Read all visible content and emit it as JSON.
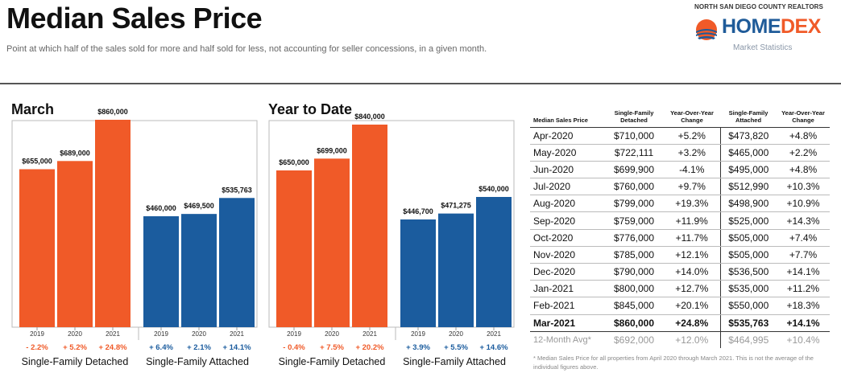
{
  "header": {
    "title": "Median Sales Price",
    "subtitle": "Point at which half of the sales sold for more and half sold for less, not accounting for seller concessions, in a given month."
  },
  "logo": {
    "org": "NORTH SAN DIEGO COUNTY REALTORS",
    "brand_part1": "HOME",
    "brand_part2": "DEX",
    "tagline": "Market Statistics",
    "icon": "sunset-icon"
  },
  "colors": {
    "orange": "#f05a28",
    "blue": "#1b5c9e"
  },
  "chart_data": [
    {
      "type": "bar",
      "title": "March",
      "ylim": [
        0,
        1000000
      ],
      "groups": [
        {
          "name": "Single-Family Detached",
          "color": "#f05a28",
          "categories": [
            "2019",
            "2020",
            "2021"
          ],
          "values": [
            655000,
            689000,
            860000
          ],
          "value_labels": [
            "$655,000",
            "$689,000",
            "$860,000"
          ],
          "changes": [
            "- 2.2%",
            "+ 5.2%",
            "+ 24.8%"
          ]
        },
        {
          "name": "Single-Family Attached",
          "color": "#1b5c9e",
          "categories": [
            "2019",
            "2020",
            "2021"
          ],
          "values": [
            460000,
            469500,
            535763
          ],
          "value_labels": [
            "$460,000",
            "$469,500",
            "$535,763"
          ],
          "changes": [
            "+ 6.4%",
            "+ 2.1%",
            "+ 14.1%"
          ]
        }
      ]
    },
    {
      "type": "bar",
      "title": "Year to Date",
      "ylim": [
        0,
        1000000
      ],
      "groups": [
        {
          "name": "Single-Family Detached",
          "color": "#f05a28",
          "categories": [
            "2019",
            "2020",
            "2021"
          ],
          "values": [
            650000,
            699000,
            840000
          ],
          "value_labels": [
            "$650,000",
            "$699,000",
            "$840,000"
          ],
          "changes": [
            "- 0.4%",
            "+ 7.5%",
            "+ 20.2%"
          ]
        },
        {
          "name": "Single-Family Attached",
          "color": "#1b5c9e",
          "categories": [
            "2019",
            "2020",
            "2021"
          ],
          "values": [
            446700,
            471275,
            540000
          ],
          "value_labels": [
            "$446,700",
            "$471,275",
            "$540,000"
          ],
          "changes": [
            "+ 3.9%",
            "+ 5.5%",
            "+ 14.6%"
          ]
        }
      ]
    },
    {
      "type": "table",
      "columns": [
        "Median Sales Price",
        "Single-Family Detached",
        "Year-Over-Year Change",
        "Single-Family Attached",
        "Year-Over-Year Change"
      ],
      "rows": [
        [
          "Apr-2020",
          "$710,000",
          "+5.2%",
          "$473,820",
          "+4.8%"
        ],
        [
          "May-2020",
          "$722,111",
          "+3.2%",
          "$465,000",
          "+2.2%"
        ],
        [
          "Jun-2020",
          "$699,900",
          "-4.1%",
          "$495,000",
          "+4.8%"
        ],
        [
          "Jul-2020",
          "$760,000",
          "+9.7%",
          "$512,990",
          "+10.3%"
        ],
        [
          "Aug-2020",
          "$799,000",
          "+19.3%",
          "$498,900",
          "+10.9%"
        ],
        [
          "Sep-2020",
          "$759,000",
          "+11.9%",
          "$525,000",
          "+14.3%"
        ],
        [
          "Oct-2020",
          "$776,000",
          "+11.7%",
          "$505,000",
          "+7.4%"
        ],
        [
          "Nov-2020",
          "$785,000",
          "+12.1%",
          "$505,000",
          "+7.7%"
        ],
        [
          "Dec-2020",
          "$790,000",
          "+14.0%",
          "$536,500",
          "+14.1%"
        ],
        [
          "Jan-2021",
          "$800,000",
          "+12.7%",
          "$535,000",
          "+11.2%"
        ],
        [
          "Feb-2021",
          "$845,000",
          "+20.1%",
          "$550,000",
          "+18.3%"
        ],
        [
          "Mar-2021",
          "$860,000",
          "+24.8%",
          "$535,763",
          "+14.1%"
        ]
      ],
      "average_row": [
        "12-Month Avg*",
        "$692,000",
        "+12.0%",
        "$464,995",
        "+10.4%"
      ],
      "footnote": "* Median Sales Price for all properties from April 2020 through March 2021. This is not the average of the individual figures above."
    }
  ]
}
